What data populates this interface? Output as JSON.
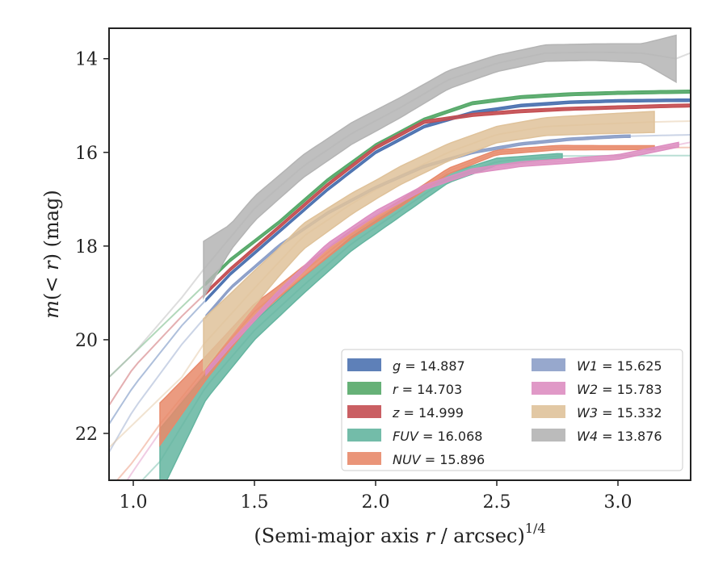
{
  "chart_data": {
    "type": "line",
    "xlabel": "(Semi-major axis r / arcsec)",
    "xlabel_exponent": "1/4",
    "xlabel_italic": "r",
    "ylabel_pre": "m",
    "ylabel_mid": "(< ",
    "ylabel_r": "r",
    "ylabel_post": ") (mag)",
    "xlim": [
      0.9,
      3.3
    ],
    "ylim": [
      23.0,
      13.35
    ],
    "y_inverted": true,
    "xticks": [
      1.0,
      1.5,
      2.0,
      2.5,
      3.0
    ],
    "xtick_labels": [
      "1.0",
      "1.5",
      "2.0",
      "2.5",
      "3.0"
    ],
    "yticks": [
      14,
      16,
      18,
      20,
      22
    ],
    "ytick_labels": [
      "14",
      "16",
      "18",
      "20",
      "22"
    ],
    "grid": false,
    "legend_position": "lower-right",
    "legend_columns": 2,
    "series": [
      {
        "name": "g",
        "value": "14.887",
        "color": "#4c72b0",
        "x": [
          0.9,
          1.0,
          1.2,
          1.4,
          1.6,
          1.8,
          2.0,
          2.2,
          2.4,
          2.6,
          2.8,
          3.0,
          3.2,
          3.3
        ],
        "y": [
          21.8,
          21.0,
          19.7,
          18.6,
          17.7,
          16.8,
          16.0,
          15.45,
          15.15,
          15.0,
          14.93,
          14.9,
          14.89,
          14.887
        ],
        "band_from": 1.3,
        "band_to": 3.3,
        "band_width": 0.05,
        "faint_from": 0.9,
        "faint_to": 1.3,
        "faint_x": [
          0.9,
          1.0,
          1.15,
          1.3
        ],
        "faint_y": [
          21.9,
          21.2,
          20.2,
          19.4
        ]
      },
      {
        "name": "r",
        "value": "14.703",
        "color": "#55a868",
        "x": [
          0.9,
          1.0,
          1.2,
          1.4,
          1.6,
          1.8,
          2.0,
          2.2,
          2.4,
          2.6,
          2.8,
          3.0,
          3.2,
          3.3
        ],
        "y": [
          20.8,
          20.3,
          19.3,
          18.3,
          17.5,
          16.6,
          15.85,
          15.3,
          14.95,
          14.82,
          14.76,
          14.73,
          14.71,
          14.703
        ],
        "band_from": 1.3,
        "band_to": 3.3,
        "band_width": 0.06
      },
      {
        "name": "z",
        "value": "14.999",
        "color": "#c44e52",
        "x": [
          0.9,
          1.0,
          1.2,
          1.4,
          1.6,
          1.8,
          2.0,
          2.2,
          2.4,
          2.6,
          2.8,
          3.0,
          3.2,
          3.3
        ],
        "y": [
          21.4,
          20.6,
          19.5,
          18.5,
          17.6,
          16.7,
          15.9,
          15.35,
          15.2,
          15.12,
          15.07,
          15.04,
          15.01,
          14.999
        ],
        "band_from": 1.3,
        "band_to": 3.3,
        "band_width": 0.06
      },
      {
        "name": "FUV",
        "value": "16.068",
        "color": "#64b5a0",
        "x": [
          0.9,
          1.0,
          1.11,
          1.3,
          1.5,
          1.7,
          1.9,
          2.1,
          2.3,
          2.5,
          2.75,
          3.0,
          3.3
        ],
        "y": [
          23.6,
          23.2,
          22.6,
          21.0,
          19.8,
          18.85,
          17.95,
          17.25,
          16.55,
          16.2,
          16.08,
          16.07,
          16.068
        ],
        "band_from": 1.11,
        "band_to": 2.77,
        "band_width_profile": [
          [
            1.11,
            1.4
          ],
          [
            1.3,
            0.55
          ],
          [
            1.5,
            0.4
          ],
          [
            1.9,
            0.3
          ],
          [
            2.2,
            0.22
          ],
          [
            2.5,
            0.15
          ],
          [
            2.77,
            0.1
          ]
        ]
      },
      {
        "name": "NUV",
        "value": "15.896",
        "color": "#e8896a",
        "x": [
          0.9,
          1.0,
          1.11,
          1.3,
          1.5,
          1.7,
          1.9,
          2.1,
          2.3,
          2.5,
          2.75,
          3.0,
          3.3
        ],
        "y": [
          23.2,
          22.6,
          21.8,
          20.6,
          19.4,
          18.55,
          17.75,
          17.1,
          16.4,
          16.0,
          15.9,
          15.9,
          15.896
        ],
        "band_from": 1.11,
        "band_to": 3.15,
        "band_width_profile": [
          [
            1.11,
            0.9
          ],
          [
            1.3,
            0.5
          ],
          [
            1.6,
            0.25
          ],
          [
            2.0,
            0.15
          ],
          [
            2.5,
            0.1
          ],
          [
            3.15,
            0.08
          ]
        ]
      },
      {
        "name": "W1",
        "value": "15.625",
        "color": "#8c9fc8",
        "x": [
          0.9,
          1.0,
          1.2,
          1.4,
          1.6,
          1.8,
          2.0,
          2.2,
          2.4,
          2.6,
          2.8,
          3.0,
          3.3
        ],
        "y": [
          22.4,
          21.5,
          20.1,
          18.9,
          18.0,
          17.3,
          16.75,
          16.3,
          16.0,
          15.82,
          15.72,
          15.66,
          15.625
        ],
        "band_from": 1.3,
        "band_to": 3.05,
        "band_width": 0.05
      },
      {
        "name": "W2",
        "value": "15.783",
        "color": "#dd8ec1",
        "x": [
          0.9,
          1.0,
          1.2,
          1.4,
          1.6,
          1.8,
          2.0,
          2.2,
          2.4,
          2.6,
          2.8,
          3.0,
          3.3
        ],
        "y": [
          23.6,
          22.8,
          21.3,
          20.1,
          19.0,
          18.0,
          17.3,
          16.75,
          16.4,
          16.25,
          16.18,
          16.1,
          15.783
        ],
        "band_from": 1.3,
        "band_to": 3.25,
        "band_width": 0.1
      },
      {
        "name": "W3",
        "value": "15.332",
        "color": "#dfc29a",
        "x": [
          0.9,
          1.0,
          1.2,
          1.29,
          1.5,
          1.7,
          1.9,
          2.1,
          2.3,
          2.5,
          2.7,
          2.9,
          3.15,
          3.3
        ],
        "y": [
          22.3,
          21.8,
          20.8,
          20.1,
          18.9,
          17.8,
          17.1,
          16.5,
          16.0,
          15.62,
          15.45,
          15.4,
          15.35,
          15.332
        ],
        "band_from": 1.29,
        "band_to": 3.15,
        "band_width_profile": [
          [
            1.29,
            1.1
          ],
          [
            1.4,
            0.9
          ],
          [
            1.6,
            0.6
          ],
          [
            2.0,
            0.4
          ],
          [
            2.5,
            0.35
          ],
          [
            3.15,
            0.45
          ]
        ]
      },
      {
        "name": "W4",
        "value": "13.876",
        "color": "#b4b4b4",
        "x": [
          0.9,
          1.0,
          1.2,
          1.29,
          1.5,
          1.7,
          1.9,
          2.1,
          2.3,
          2.5,
          2.7,
          2.9,
          3.1,
          3.24,
          3.3
        ],
        "y": [
          20.8,
          20.3,
          19.1,
          18.5,
          17.2,
          16.3,
          15.6,
          15.05,
          14.45,
          14.1,
          13.88,
          13.86,
          13.88,
          14.0,
          13.876
        ],
        "band_from": 1.29,
        "band_to": 3.24,
        "band_width_profile": [
          [
            1.29,
            1.2
          ],
          [
            1.4,
            0.55
          ],
          [
            1.6,
            0.5
          ],
          [
            2.0,
            0.45
          ],
          [
            2.5,
            0.35
          ],
          [
            2.9,
            0.35
          ],
          [
            3.1,
            0.4
          ],
          [
            3.24,
            1.0
          ]
        ]
      }
    ]
  }
}
